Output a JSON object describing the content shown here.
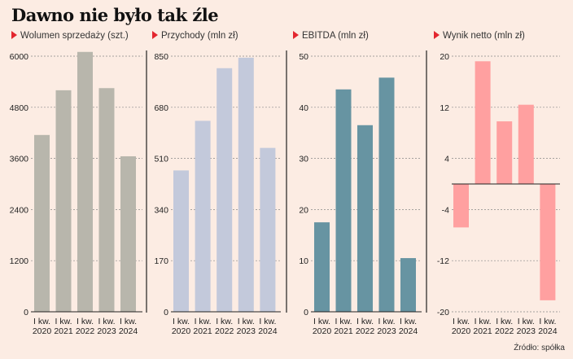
{
  "page": {
    "title": "Dawno nie było tak źle",
    "source": "Źródło: spółka"
  },
  "colors": {
    "background": "#fcece3",
    "marker": "#e3262f"
  },
  "chart_data": [
    {
      "type": "bar",
      "title": "Wolumen sprzedaży (szt.)",
      "categories": [
        "I kw. 2020",
        "I kw. 2021",
        "I kw. 2022",
        "I kw. 2023",
        "I kw. 2024"
      ],
      "values": [
        4150,
        5200,
        6100,
        5250,
        3650
      ],
      "ylim": [
        0,
        6000
      ],
      "yticks": [
        0,
        1200,
        2400,
        3600,
        4800,
        6000
      ],
      "color": "#b8b6ac",
      "grid": true
    },
    {
      "type": "bar",
      "title": "Przychody (mln zł)",
      "categories": [
        "I kw. 2020",
        "I kw. 2021",
        "I kw. 2022",
        "I kw. 2023",
        "I kw. 2024"
      ],
      "values": [
        470,
        635,
        810,
        845,
        545
      ],
      "ylim": [
        0,
        850
      ],
      "yticks": [
        0,
        170,
        340,
        510,
        680,
        850
      ],
      "color": "#c3c9db",
      "grid": true
    },
    {
      "type": "bar",
      "title": "EBITDA (mln zł)",
      "categories": [
        "I kw. 2020",
        "I kw. 2021",
        "I kw. 2022",
        "I kw. 2023",
        "I kw. 2024"
      ],
      "values": [
        17.5,
        43.5,
        36.5,
        45.8,
        10.5
      ],
      "ylim": [
        0,
        50
      ],
      "yticks": [
        0,
        10,
        20,
        30,
        40,
        50
      ],
      "color": "#6794a2",
      "grid": true
    },
    {
      "type": "bar",
      "title": "Wynik netto (mln zł)",
      "categories": [
        "I kw. 2020",
        "I kw. 2021",
        "I kw. 2022",
        "I kw. 2023",
        "I kw. 2024"
      ],
      "values": [
        -6.8,
        19.2,
        9.8,
        12.4,
        -18.2
      ],
      "ylim": [
        -20,
        20
      ],
      "yticks": [
        -20,
        -12,
        -4,
        4,
        12,
        20
      ],
      "color": "#ffa0a0",
      "grid": true
    }
  ]
}
